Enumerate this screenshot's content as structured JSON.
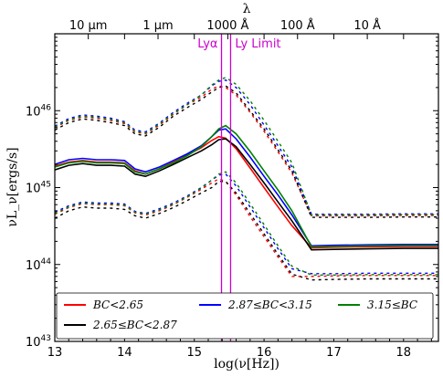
{
  "chart_data": {
    "type": "line",
    "xlabel": "log(ν[Hz])",
    "ylabel": "νL_ν[ergs/s]",
    "top_axis_label": "λ",
    "xlim": [
      13,
      18.5
    ],
    "ylim": [
      1e+43,
      1e+47
    ],
    "yscale": "log",
    "x_ticks": [
      13,
      14,
      15,
      16,
      17,
      18
    ],
    "x_tick_labels": [
      "13",
      "14",
      "15",
      "16",
      "17",
      "18"
    ],
    "y_ticks": [
      1e+43,
      1e+44,
      1e+45,
      1e+46
    ],
    "y_tick_labels": [
      "10^43",
      "10^44",
      "10^45",
      "10^46"
    ],
    "top_ticks": [
      {
        "x": 13.48,
        "label": "10 μm"
      },
      {
        "x": 14.48,
        "label": "1 μm"
      },
      {
        "x": 15.48,
        "label": "1000 Å"
      },
      {
        "x": 16.48,
        "label": "100 Å"
      },
      {
        "x": 17.48,
        "label": "10 Å"
      }
    ],
    "vlines": [
      {
        "x": 15.39,
        "label": "Lyα",
        "color": "#cc00cc"
      },
      {
        "x": 15.52,
        "label": "Ly Limit",
        "color": "#cc00cc"
      }
    ],
    "grid": false,
    "legend_position": "bottom",
    "series": [
      {
        "name": "BC<2.65",
        "color": "#ff0000",
        "x": [
          13.0,
          13.2,
          13.4,
          13.6,
          13.8,
          14.0,
          14.15,
          14.3,
          14.5,
          14.7,
          14.9,
          15.1,
          15.25,
          15.35,
          15.45,
          15.6,
          15.8,
          16.0,
          16.2,
          16.4,
          16.68,
          17.0,
          17.5,
          18.0,
          18.5
        ],
        "median": [
          1.9e+45,
          2.15e+45,
          2.25e+45,
          2.15e+45,
          2.15e+45,
          2.1e+45,
          1.65e+45,
          1.5e+45,
          1.75e+45,
          2.15e+45,
          2.65e+45,
          3.3e+45,
          4.1e+45,
          4.6e+45,
          4.4e+45,
          3.2e+45,
          1.8e+45,
          1e+45,
          5.6e+44,
          3.2e+44,
          1.65e+44,
          1.68e+44,
          1.7e+44,
          1.72e+44,
          1.72e+44
        ],
        "upper": [
          6e+45,
          7.5e+45,
          8.3e+45,
          8e+45,
          7.5e+45,
          6.8e+45,
          5.3e+45,
          5e+45,
          6.5e+45,
          9e+45,
          1.2e+46,
          1.5e+46,
          1.9e+46,
          2.1e+46,
          2e+46,
          1.6e+46,
          9.5e+45,
          5.4e+45,
          2.9e+45,
          1.55e+45,
          4.3e+44,
          4.3e+44,
          4.3e+44,
          4.35e+44,
          4.35e+44
        ],
        "lower": [
          4.5e+44,
          5.5e+44,
          6.2e+44,
          6e+44,
          6e+44,
          5.8e+44,
          4.7e+44,
          4.4e+44,
          5e+44,
          6e+44,
          7.5e+44,
          9.5e+44,
          1.15e+45,
          1.3e+45,
          1.2e+45,
          8e+44,
          4.2e+44,
          2.3e+44,
          1.25e+44,
          7e+43,
          7e+43,
          7.1e+43,
          7.2e+43,
          7.2e+43,
          7.2e+43
        ]
      },
      {
        "name": "2.65≤BC<2.87",
        "color": "#000000",
        "x": [
          13.0,
          13.2,
          13.4,
          13.6,
          13.8,
          14.0,
          14.15,
          14.3,
          14.5,
          14.7,
          14.9,
          15.1,
          15.25,
          15.35,
          15.45,
          15.6,
          15.8,
          16.0,
          16.2,
          16.4,
          16.68,
          17.0,
          17.5,
          18.0,
          18.5
        ],
        "median": [
          1.7e+45,
          1.95e+45,
          2.05e+45,
          1.95e+45,
          1.95e+45,
          1.9e+45,
          1.5e+45,
          1.4e+45,
          1.65e+45,
          2e+45,
          2.45e+45,
          3e+45,
          3.6e+45,
          4.2e+45,
          4.3e+45,
          3.4e+45,
          2e+45,
          1.15e+45,
          6.5e+44,
          3.7e+44,
          1.55e+44,
          1.57e+44,
          1.6e+44,
          1.62e+44,
          1.62e+44
        ],
        "upper": [
          5.6e+45,
          7e+45,
          7.8e+45,
          7.5e+45,
          7e+45,
          6.4e+45,
          5e+45,
          4.7e+45,
          6.1e+45,
          8.5e+45,
          1.1e+46,
          1.4e+46,
          1.75e+46,
          2e+46,
          2.1e+46,
          1.7e+46,
          1e+46,
          5.8e+45,
          3.1e+45,
          1.65e+45,
          4.1e+44,
          4.1e+44,
          4.1e+44,
          4.15e+44,
          4.15e+44
        ],
        "lower": [
          4e+44,
          5e+44,
          5.6e+44,
          5.4e+44,
          5.4e+44,
          5.2e+44,
          4.3e+44,
          4e+44,
          4.6e+44,
          5.5e+44,
          6.8e+44,
          8.5e+44,
          1e+45,
          1.2e+45,
          1.2e+45,
          8.5e+44,
          4.6e+44,
          2.5e+44,
          1.35e+44,
          7.5e+43,
          6.3e+43,
          6.4e+43,
          6.5e+43,
          6.5e+43,
          6.5e+43
        ]
      },
      {
        "name": "2.87≤BC<3.15",
        "color": "#0000ff",
        "x": [
          13.0,
          13.2,
          13.4,
          13.6,
          13.8,
          14.0,
          14.15,
          14.3,
          14.5,
          14.7,
          14.9,
          15.1,
          15.25,
          15.35,
          15.45,
          15.6,
          15.8,
          16.0,
          16.2,
          16.4,
          16.68,
          17.0,
          17.5,
          18.0,
          18.5
        ],
        "median": [
          2e+45,
          2.3e+45,
          2.4e+45,
          2.3e+45,
          2.3e+45,
          2.25e+45,
          1.75e+45,
          1.6e+45,
          1.85e+45,
          2.25e+45,
          2.75e+45,
          3.5e+45,
          4.6e+45,
          5.6e+45,
          5.8e+45,
          4.3e+45,
          2.5e+45,
          1.4e+45,
          8e+44,
          4.4e+44,
          1.75e+44,
          1.78e+44,
          1.8e+44,
          1.82e+44,
          1.82e+44
        ],
        "upper": [
          6.3e+45,
          7.9e+45,
          8.8e+45,
          8.5e+45,
          8e+45,
          7.2e+45,
          5.6e+45,
          5.3e+45,
          6.9e+45,
          9.5e+45,
          1.25e+46,
          1.6e+46,
          2.1e+46,
          2.4e+46,
          2.5e+46,
          2e+46,
          1.2e+46,
          6.5e+45,
          3.5e+45,
          1.85e+45,
          4.5e+44,
          4.5e+44,
          4.5e+44,
          4.55e+44,
          4.55e+44
        ],
        "lower": [
          4.8e+44,
          5.8e+44,
          6.5e+44,
          6.3e+44,
          6.3e+44,
          6.1e+44,
          4.9e+44,
          4.6e+44,
          5.3e+44,
          6.3e+44,
          7.8e+44,
          1e+45,
          1.25e+45,
          1.45e+45,
          1.5e+45,
          1.05e+45,
          5.6e+44,
          3e+44,
          1.6e+44,
          8.8e+43,
          7.6e+43,
          7.6e+43,
          7.7e+43,
          7.7e+43,
          7.7e+43
        ]
      },
      {
        "name": "3.15≤BC",
        "color": "#008000",
        "x": [
          13.0,
          13.2,
          13.4,
          13.6,
          13.8,
          14.0,
          14.15,
          14.3,
          14.5,
          14.7,
          14.9,
          15.1,
          15.25,
          15.35,
          15.45,
          15.6,
          15.8,
          16.0,
          16.2,
          16.4,
          16.68,
          17.0,
          17.5,
          18.0,
          18.5
        ],
        "median": [
          1.85e+45,
          2.1e+45,
          2.2e+45,
          2.1e+45,
          2.1e+45,
          2.05e+45,
          1.6e+45,
          1.5e+45,
          1.75e+45,
          2.1e+45,
          2.6e+45,
          3.4e+45,
          4.6e+45,
          5.8e+45,
          6.4e+45,
          5e+45,
          2.95e+45,
          1.65e+45,
          9.3e+44,
          5e+44,
          1.7e+44,
          1.72e+44,
          1.75e+44,
          1.77e+44,
          1.77e+44
        ],
        "upper": [
          6.1e+45,
          7.6e+45,
          8.5e+45,
          8.2e+45,
          7.7e+45,
          7e+45,
          5.4e+45,
          5.1e+45,
          6.7e+45,
          9.2e+45,
          1.2e+46,
          1.6e+46,
          2.15e+46,
          2.5e+46,
          2.7e+46,
          2.2e+46,
          1.35e+46,
          7.5e+45,
          4e+45,
          2.1e+45,
          4.4e+44,
          4.4e+44,
          4.4e+44,
          4.45e+44,
          4.45e+44
        ],
        "lower": [
          4.6e+44,
          5.6e+44,
          6.3e+44,
          6.1e+44,
          6.1e+44,
          5.9e+44,
          4.8e+44,
          4.5e+44,
          5.1e+44,
          6.1e+44,
          7.6e+44,
          9.8e+44,
          1.25e+45,
          1.5e+45,
          1.6e+45,
          1.15e+45,
          6.2e+44,
          3.3e+44,
          1.75e+44,
          9.5e+43,
          7.3e+43,
          7.3e+43,
          7.4e+43,
          7.4e+43,
          7.4e+43
        ]
      }
    ],
    "legend_entries": [
      {
        "label": "BC<2.65",
        "color": "#ff0000"
      },
      {
        "label": "2.87≤BC<3.15",
        "color": "#0000ff"
      },
      {
        "label": "3.15≤BC",
        "color": "#008000"
      },
      {
        "label": "2.65≤BC<2.87",
        "color": "#000000"
      }
    ]
  }
}
